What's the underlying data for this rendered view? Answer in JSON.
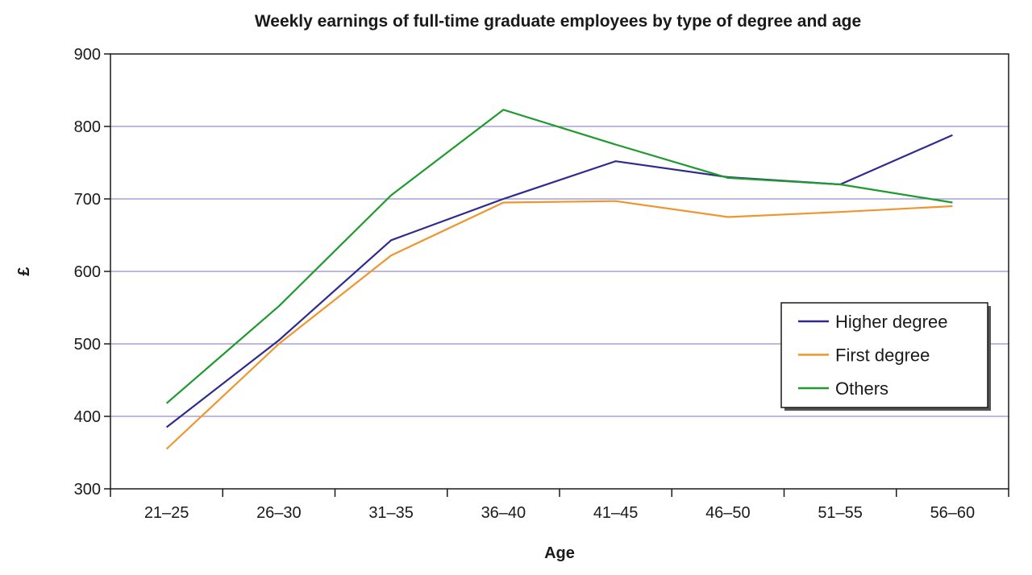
{
  "colors": {
    "higher_degree": "#2e2a8e",
    "first_degree": "#f0952e",
    "others": "#1e9a2e",
    "gridline": "#9a8ec8",
    "axis": "#1a1a1a",
    "legend_border": "#1a1a1a"
  },
  "chart_data": {
    "type": "line",
    "title": "Weekly earnings of full-time graduate employees by type of degree and age",
    "xlabel": "Age",
    "ylabel": "£",
    "categories": [
      "21–25",
      "26–30",
      "31–35",
      "36–40",
      "41–45",
      "46–50",
      "51–55",
      "56–60"
    ],
    "ylim": [
      300,
      900
    ],
    "yticks": [
      "300",
      "400",
      "500",
      "600",
      "700",
      "800",
      "900"
    ],
    "grid": true,
    "legend_position": "right-middle",
    "series": [
      {
        "name": "Higher degree",
        "color_key": "higher_degree",
        "values": [
          385,
          505,
          643,
          700,
          752,
          730,
          720,
          788
        ]
      },
      {
        "name": "First degree",
        "color_key": "first_degree",
        "values": [
          355,
          500,
          622,
          695,
          697,
          675,
          682,
          690
        ]
      },
      {
        "name": "Others",
        "color_key": "others",
        "values": [
          418,
          552,
          705,
          823,
          775,
          729,
          720,
          695
        ]
      }
    ]
  }
}
